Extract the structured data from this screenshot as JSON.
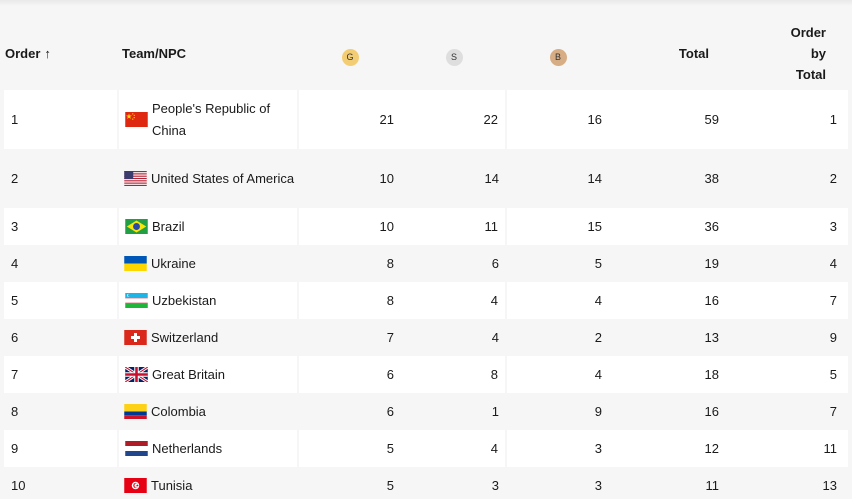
{
  "header": {
    "order": "Order",
    "team": "Team/NPC",
    "gold_badge": "G",
    "silver_badge": "S",
    "bronze_badge": "B",
    "total": "Total",
    "rank_line1": "Order",
    "rank_line2": "by",
    "rank_line3": "Total",
    "sort_indicator": "↑"
  },
  "medal_colors": {
    "gold": "#f3cd74",
    "silver": "#dedede",
    "bronze": "#d6ad84"
  },
  "rows": [
    {
      "order": "1",
      "team": "People's Republic of China",
      "flag": "china-flag-icon",
      "gold": "21",
      "silver": "22",
      "bronze": "16",
      "total": "59",
      "rank": "1"
    },
    {
      "order": "2",
      "team": "United States of America",
      "flag": "usa-flag-icon",
      "gold": "10",
      "silver": "14",
      "bronze": "14",
      "total": "38",
      "rank": "2"
    },
    {
      "order": "3",
      "team": "Brazil",
      "flag": "brazil-flag-icon",
      "gold": "10",
      "silver": "11",
      "bronze": "15",
      "total": "36",
      "rank": "3"
    },
    {
      "order": "4",
      "team": "Ukraine",
      "flag": "ukraine-flag-icon",
      "gold": "8",
      "silver": "6",
      "bronze": "5",
      "total": "19",
      "rank": "4"
    },
    {
      "order": "5",
      "team": "Uzbekistan",
      "flag": "uzbekistan-flag-icon",
      "gold": "8",
      "silver": "4",
      "bronze": "4",
      "total": "16",
      "rank": "7"
    },
    {
      "order": "6",
      "team": "Switzerland",
      "flag": "switzerland-flag-icon",
      "gold": "7",
      "silver": "4",
      "bronze": "2",
      "total": "13",
      "rank": "9"
    },
    {
      "order": "7",
      "team": "Great Britain",
      "flag": "great-britain-flag-icon",
      "gold": "6",
      "silver": "8",
      "bronze": "4",
      "total": "18",
      "rank": "5"
    },
    {
      "order": "8",
      "team": "Colombia",
      "flag": "colombia-flag-icon",
      "gold": "6",
      "silver": "1",
      "bronze": "9",
      "total": "16",
      "rank": "7"
    },
    {
      "order": "9",
      "team": "Netherlands",
      "flag": "netherlands-flag-icon",
      "gold": "5",
      "silver": "4",
      "bronze": "3",
      "total": "12",
      "rank": "11"
    },
    {
      "order": "10",
      "team": "Tunisia",
      "flag": "tunisia-flag-icon",
      "gold": "5",
      "silver": "3",
      "bronze": "3",
      "total": "11",
      "rank": "13"
    }
  ]
}
